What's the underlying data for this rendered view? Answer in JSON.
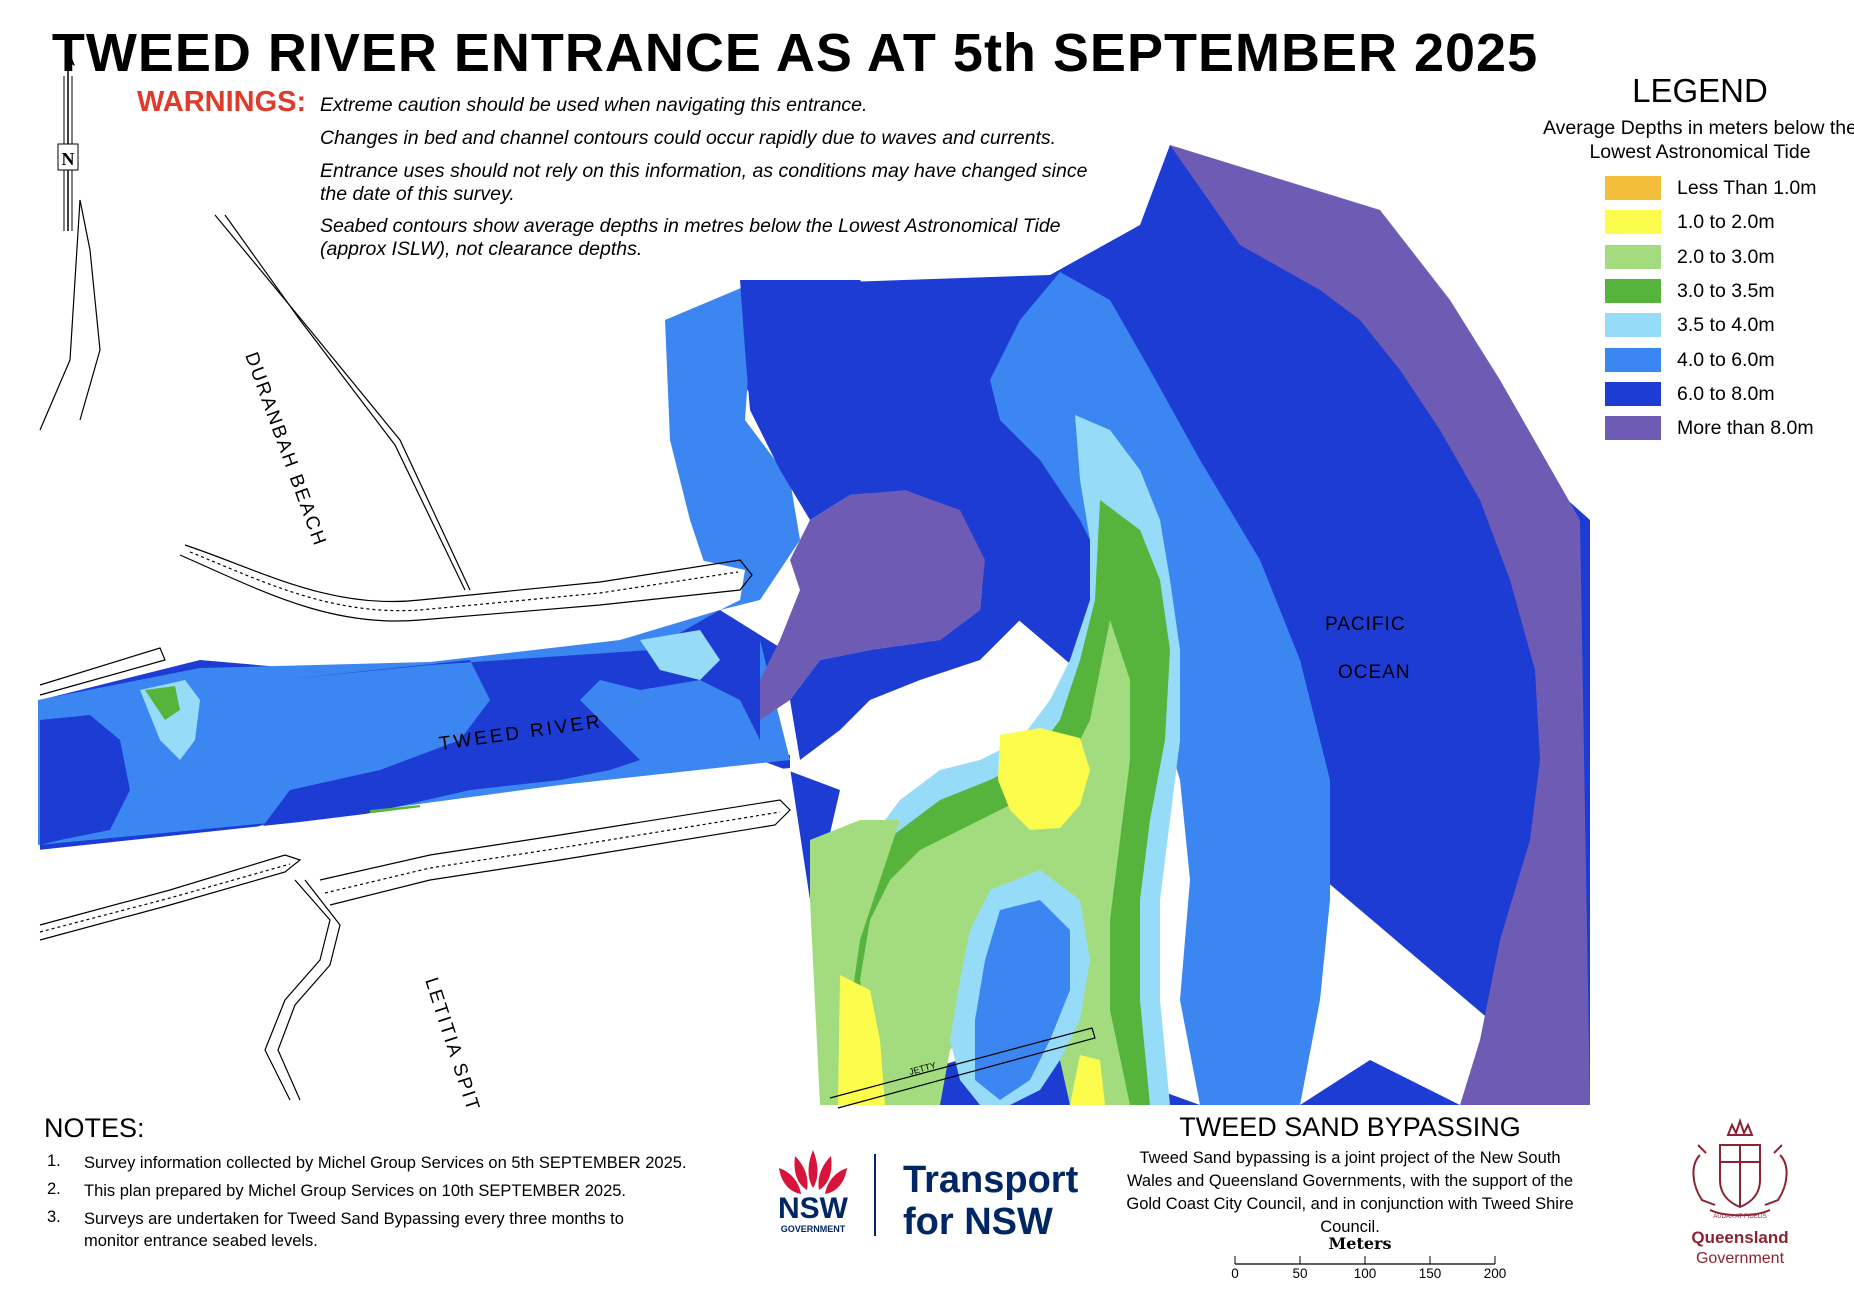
{
  "title": "TWEED RIVER ENTRANCE AS AT 5th SEPTEMBER 2025",
  "warnings": {
    "label": "WARNINGS:",
    "lines": [
      "Extreme caution should be used when navigating this entrance.",
      "Changes in bed and channel contours could occur rapidly due to waves and currents.",
      "Entrance uses should not rely on this information, as conditions may have changed since the date of this survey.",
      "Seabed contours show average depths in metres below the Lowest Astronomical Tide (approx ISLW), not clearance depths."
    ]
  },
  "legend": {
    "title": "LEGEND",
    "subtitle": "Average Depths in meters below the Lowest Astronomical Tide",
    "items": [
      {
        "label": "Less Than 1.0m",
        "color": "#f2be3c"
      },
      {
        "label": "1.0 to 2.0m",
        "color": "#fcfc4c"
      },
      {
        "label": "2.0 to 3.0m",
        "color": "#a2dc7e"
      },
      {
        "label": "3.0 to 3.5m",
        "color": "#56b43c"
      },
      {
        "label": "3.5 to 4.0m",
        "color": "#96dcf8"
      },
      {
        "label": "4.0 to 6.0m",
        "color": "#3c86f2"
      },
      {
        "label": "6.0 to 8.0m",
        "color": "#1c3cd4"
      },
      {
        "label": "More than 8.0m",
        "color": "#6e5cb4"
      }
    ]
  },
  "map_labels": {
    "duranbah": "DURANBAH BEACH",
    "letitia": "LETITIA SPIT",
    "river": "TWEED RIVER",
    "pacific": "PACIFIC",
    "ocean": "OCEAN",
    "jetty": "JETTY",
    "north": "N"
  },
  "notes": {
    "title": "NOTES:",
    "items": [
      {
        "num": "1.",
        "text": "Survey information collected by Michel Group Services on  5th SEPTEMBER 2025."
      },
      {
        "num": "2.",
        "text": "This plan prepared by Michel Group Services on 10th SEPTEMBER 2025."
      },
      {
        "num": "3.",
        "text": "Surveys are undertaken for Tweed Sand Bypassing every three months to monitor entrance seabed levels."
      }
    ]
  },
  "bypassing": {
    "title": "TWEED SAND BYPASSING",
    "text": "Tweed Sand bypassing is a joint project of the New South Wales and Queensland Governments, with the support of the Gold Coast City Council, and in conjunction with Tweed Shire Council."
  },
  "scale": {
    "title": "Meters",
    "ticks": [
      "0",
      "50",
      "100",
      "150",
      "200"
    ]
  },
  "logos": {
    "nsw_wordmark": "NSW",
    "nsw_gov": "GOVERNMENT",
    "transport_line1": "Transport",
    "transport_line2": "for NSW",
    "qld_line1": "Queensland",
    "qld_line2": "Government",
    "qld_motto": "AUDAX AT FIDELIS"
  }
}
